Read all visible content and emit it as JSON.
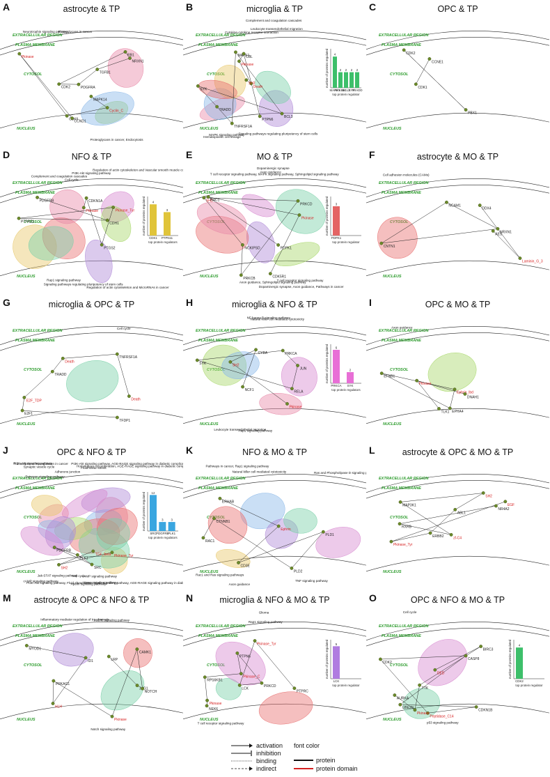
{
  "colors": {
    "region": "#2a9a2a",
    "node": "#6b8a2a",
    "red": "#d62020",
    "bar_green": "#3dbf6a",
    "bar_yellow": "#e0c43a",
    "bar_red": "#e46464",
    "bar_pink": "#e86fd6",
    "bar_blue": "#3aa6e0",
    "bar_purple": "#b07ce0"
  },
  "regions": {
    "extracellular": "EXTRACELLULAR REGION",
    "plasma": "PLASMA MEMBRANE",
    "cytosol": "CYTOSOL",
    "nucleus": "NUCLEUS"
  },
  "panels": [
    {
      "letter": "A",
      "title": "astrocyte & TP",
      "nodes": [
        {
          "t": "PDGFRA",
          "red": false
        },
        {
          "t": "TGFB1",
          "red": false
        },
        {
          "t": "NRXN1",
          "red": false
        },
        {
          "t": "RB1",
          "red": false
        },
        {
          "t": "CDK2",
          "red": false
        },
        {
          "t": "MAPK14",
          "red": false
        },
        {
          "t": "Cyclin_C",
          "red": true
        },
        {
          "t": "CDK6",
          "red": false
        },
        {
          "t": "Pkinase",
          "red": true
        },
        {
          "t": "CCND1",
          "red": false
        }
      ],
      "paths": [
        "Neurotrophin signaling pathway",
        "Proteoglycans in cancer, Endocytosis",
        "Proteoglycans in cancer"
      ]
    },
    {
      "letter": "B",
      "title": "microglia & TP",
      "nodes": [
        {
          "t": "MAPK1",
          "red": false
        },
        {
          "t": "BCL3",
          "red": false
        },
        {
          "t": "SYK",
          "red": false
        },
        {
          "t": "TRADD",
          "red": false
        },
        {
          "t": "TNFRSF1A",
          "red": false
        },
        {
          "t": "PTPN6",
          "red": false
        },
        {
          "t": "CBL",
          "red": false
        },
        {
          "t": "Pkinase",
          "red": true
        },
        {
          "t": "Death",
          "red": true
        },
        {
          "t": "SH2",
          "red": true
        }
      ],
      "paths": [
        "Cytokine-cytokine receptor interaction",
        "Hematopoietic cell lineage",
        "Complement and coagulation cascades",
        "Signaling pathways regulating pluripotency of stem cells",
        "Leukocyte transendothelial migration",
        "MAPK signaling pathway"
      ],
      "chart": {
        "type": "bar",
        "ylabel": "number of proteins regulated",
        "xlabel": "top protein regulator",
        "categories": [
          "MAPK1",
          "NFKBIA",
          "BCL3",
          "SYK",
          "TRADD"
        ],
        "values": [
          4,
          2,
          2,
          2,
          2
        ],
        "ylim": [
          0,
          5
        ]
      }
    },
    {
      "letter": "C",
      "title": "OPC & TP",
      "nodes": [
        {
          "t": "PBX1",
          "red": false
        },
        {
          "t": "CDK2",
          "red": false
        },
        {
          "t": "CDK1",
          "red": false
        },
        {
          "t": "CCNE1",
          "red": false
        }
      ],
      "paths": []
    },
    {
      "letter": "D",
      "title": "NFO & TP",
      "nodes": [
        {
          "t": "PDGFRB",
          "red": false
        },
        {
          "t": "CDH1",
          "red": false
        },
        {
          "t": "PTPRZ1",
          "red": false
        },
        {
          "t": "Pkinase_Tyr",
          "red": true
        },
        {
          "t": "PTGS2",
          "red": false
        },
        {
          "t": "CDKN1A",
          "red": false
        },
        {
          "t": "Pkinase",
          "red": true
        }
      ],
      "paths": [
        "Complement and coagulation cascades",
        "Regulation of actin cytoskeleton and MicroRNAs in cancer",
        "PI3K-Akt signaling pathway",
        "Signaling pathways regulating pluripotency of stem cells",
        "Regulation of actin cytoskeleton and Vascular smooth muscle contraction",
        "Rap1 signaling pathway",
        "Cell cycle"
      ],
      "chart": {
        "type": "bar",
        "ylabel": "number of proteins regulated",
        "xlabel": "top protein regulators",
        "categories": [
          "CDK1",
          "PTPN11"
        ],
        "values": [
          4,
          3
        ],
        "ylim": [
          0,
          5
        ]
      }
    },
    {
      "letter": "E",
      "title": "MO & TP",
      "nodes": [
        {
          "t": "PRKCD",
          "red": false
        },
        {
          "t": "SH3",
          "red": true
        },
        {
          "t": "NCKIPSD",
          "red": false
        },
        {
          "t": "PRKCB",
          "red": false
        },
        {
          "t": "PDPK1",
          "red": false
        },
        {
          "t": "RAC1",
          "red": false
        },
        {
          "t": "Pkinase",
          "red": true
        },
        {
          "t": "CDK5R1",
          "red": false
        }
      ],
      "paths": [
        "Axon guidance",
        "T cell receptor signaling pathway",
        "T cell receptor signaling pathway, MAPK signaling pathway, Sphingolipid signaling pathway",
        "Dopaminergic synapse, Axon guidance, Pathways in cancer",
        "Dopaminergic synapse",
        "Axon guidance, Sphingolipid signaling pathway"
      ],
      "chart": {
        "type": "bar",
        "ylabel": "number of proteins regulated",
        "xlabel": "top protein regulator",
        "categories": [
          "PDPK1"
        ],
        "values": [
          3
        ],
        "ylim": [
          0,
          4
        ]
      }
    },
    {
      "letter": "F",
      "title": "astrocyte & MO & TP",
      "nodes": [
        {
          "t": "NCAM1",
          "red": false
        },
        {
          "t": "NRXN1",
          "red": false
        },
        {
          "t": "CNTN1",
          "red": false
        },
        {
          "t": "DDX4",
          "red": false
        },
        {
          "t": "Laminin_G_3",
          "red": true
        },
        {
          "t": "AES",
          "red": false
        }
      ],
      "paths": [
        "Cell adhesion molecules (CAMs)"
      ]
    },
    {
      "letter": "G",
      "title": "microglia & OPC & TP",
      "nodes": [
        {
          "t": "Death",
          "red": true
        },
        {
          "t": "TNFRSF1A",
          "red": false
        },
        {
          "t": "Death",
          "red": true
        },
        {
          "t": "TRADD",
          "red": false
        },
        {
          "t": "E2F_TDP",
          "red": true
        },
        {
          "t": "E2F1",
          "red": false
        },
        {
          "t": "TFDP1",
          "red": false
        }
      ],
      "paths": [
        "Cell cycle"
      ]
    },
    {
      "letter": "H",
      "title": "microglia & NFO & TP",
      "nodes": [
        {
          "t": "PRKCA",
          "red": false
        },
        {
          "t": "SYK",
          "red": false
        },
        {
          "t": "RELA",
          "red": false
        },
        {
          "t": "JUN",
          "red": false
        },
        {
          "t": "NCF1",
          "red": false
        },
        {
          "t": "CYBA",
          "red": false
        },
        {
          "t": "SH2",
          "red": true
        },
        {
          "t": "Pkinase",
          "red": true
        }
      ],
      "paths": [
        "Natural killer cell mediated cytotoxicity",
        "Leukocyte transendothelial migration",
        "NF-kappa B signaling pathway",
        "Rap1 signaling pathway"
      ],
      "chart": {
        "type": "bar",
        "ylabel": "number of proteins regulated",
        "xlabel": "top protein regulators",
        "categories": [
          "PRKCA",
          "SYK"
        ],
        "values": [
          6,
          2
        ],
        "ylim": [
          0,
          7
        ]
      }
    },
    {
      "letter": "I",
      "title": "OPC & MO & TP",
      "nodes": [
        {
          "t": "EPHA4",
          "red": false
        },
        {
          "t": "Ephrin_lbd",
          "red": true
        },
        {
          "t": "EFNB1",
          "red": false
        },
        {
          "t": "TLK1",
          "red": false
        },
        {
          "t": "Pkinase",
          "red": true
        },
        {
          "t": "DNAH1",
          "red": false
        }
      ],
      "paths": [
        "Axon guidance"
      ]
    },
    {
      "letter": "J",
      "title": "OPC & NFO & TP",
      "nodes": [
        {
          "t": "SRC",
          "red": false
        },
        {
          "t": "PDGFRB",
          "red": false
        },
        {
          "t": "PLK1",
          "red": false
        },
        {
          "t": "Pkinase_Tyr",
          "red": true
        },
        {
          "t": "SH2",
          "red": true
        },
        {
          "t": "TGF_beta",
          "red": true
        }
      ],
      "paths": [
        "Transcriptional misregulation in cancer",
        "cAMP signaling pathway",
        "PI3K-Akt signaling pathway",
        "Jak-STAT signaling pathway",
        "Fluid shear stress",
        "Apelin signaling pathway",
        "Synaptic vesicle cycle",
        "cAMP signaling pathway",
        "Estrogen signaling pathway",
        "Hippo signaling pathway",
        "Adherens junction",
        "Cell cycle",
        "Homologous recombination, AGE-RAGE signaling pathway in diabetic complications",
        "PI3K-Akt signaling pathway, Fluid shear stress, Hippo signaling pathway, AGE-RAGE signaling pathway in diabetic complications, Jak-STAT signaling pathway",
        "PI3K-Akt signaling pathway, AGE-RAGE signaling pathway in diabetic complications"
      ],
      "chart": {
        "type": "bar",
        "ylabel": "number of proteins regulated",
        "xlabel": "top protein regulators",
        "categories": [
          "SRC",
          "PDGFRB",
          "PLK1"
        ],
        "values": [
          12,
          3,
          3
        ],
        "ylim": [
          0,
          13
        ]
      }
    },
    {
      "letter": "K",
      "title": "NFO & MO & TP",
      "nodes": [
        {
          "t": "ERHAB",
          "red": false
        },
        {
          "t": "Ephrin",
          "red": true
        },
        {
          "t": "CD3E",
          "red": false
        },
        {
          "t": "PLD1",
          "red": false
        },
        {
          "t": "PLD2",
          "red": false
        },
        {
          "t": "CTNNB1",
          "red": false
        },
        {
          "t": "RAC1",
          "red": false
        }
      ],
      "paths": [
        "Natural killer cell mediated cytotoxicity",
        "Axon guidance",
        "Ras and Phospholipase D signaling pathways, Focal adhesion",
        "TNF signaling pathway",
        "Pathways in cancer, Rap1 signaling pathway",
        "Rac1 and Ras signaling pathways"
      ]
    },
    {
      "letter": "L",
      "title": "astrocyte & OPC & MO & TP",
      "nodes": [
        {
          "t": "EGF",
          "red": true
        },
        {
          "t": "Pkinase_Tyr",
          "red": true
        },
        {
          "t": "ERBB2",
          "red": false
        },
        {
          "t": "ABL1",
          "red": false
        },
        {
          "t": "SH2",
          "red": true
        },
        {
          "t": "MAP3K1",
          "red": false
        },
        {
          "t": "zf-C4",
          "red": true
        },
        {
          "t": "RXRB",
          "red": false
        },
        {
          "t": "NR4A2",
          "red": false
        }
      ],
      "paths": []
    },
    {
      "letter": "M",
      "title": "astrocyte & OPC & NFO & TP",
      "nodes": [
        {
          "t": "LRP",
          "red": false
        },
        {
          "t": "JAG1",
          "red": false
        },
        {
          "t": "NOTCH",
          "red": false
        },
        {
          "t": "CAMK1",
          "red": false
        },
        {
          "t": "Pkinase",
          "red": true
        },
        {
          "t": "PRKAG1",
          "red": false
        },
        {
          "t": "HLH",
          "red": true
        },
        {
          "t": "ID1",
          "red": false
        },
        {
          "t": "MYOD1",
          "red": false
        }
      ],
      "paths": [
        "Inflammatory mediator regulation of trp channels",
        "Notch signaling pathway",
        "AMPK signaling pathway"
      ]
    },
    {
      "letter": "N",
      "title": "microglia & NFO & MO & TP",
      "nodes": [
        {
          "t": "PTPRC",
          "red": false
        },
        {
          "t": "Pkinase_Tyr",
          "red": true
        },
        {
          "t": "LCK",
          "red": false
        },
        {
          "t": "PRKCD",
          "red": false
        },
        {
          "t": "PTPN6",
          "red": false
        },
        {
          "t": "Pkinase_C",
          "red": true
        },
        {
          "t": "RPS6KB1",
          "red": false
        },
        {
          "t": "Pkinase",
          "red": true
        },
        {
          "t": "NEK6",
          "red": false
        }
      ],
      "paths": [
        "Rap1 signaling pathway",
        "T cell receptor signaling pathway",
        "Glioma"
      ],
      "chart": {
        "type": "bar",
        "ylabel": "number of proteins regulated",
        "xlabel": "top protein regulator",
        "categories": [
          "LCK"
        ],
        "values": [
          5
        ],
        "ylim": [
          0,
          6
        ]
      }
    },
    {
      "letter": "O",
      "title": "OPC & NFO & MO & TP",
      "nodes": [
        {
          "t": "CDKN1B",
          "red": false
        },
        {
          "t": "UBE2N",
          "red": false
        },
        {
          "t": "CASP8",
          "red": false
        },
        {
          "t": "CDK2",
          "red": false
        },
        {
          "t": "Peptidase_C14",
          "red": true
        },
        {
          "t": "DED",
          "red": true
        },
        {
          "t": "BIRC3",
          "red": false
        },
        {
          "t": "TTK",
          "red": false
        },
        {
          "t": "Pkinase",
          "red": true
        },
        {
          "t": "AURKA",
          "red": false
        }
      ],
      "paths": [
        "Cell cycle",
        "p53 signaling pathway"
      ],
      "chart": {
        "type": "bar",
        "ylabel": "number of proteins regulated",
        "xlabel": "top protein regulator",
        "categories": [
          "CDK2"
        ],
        "values": [
          4
        ],
        "ylim": [
          0,
          5
        ]
      }
    }
  ],
  "legend": {
    "activation": "activation",
    "inhibition": "inhibition",
    "binding": "binding",
    "indirect": "indirect",
    "font_color": "font color",
    "protein": "protein",
    "protein_domain": "protein domain"
  }
}
